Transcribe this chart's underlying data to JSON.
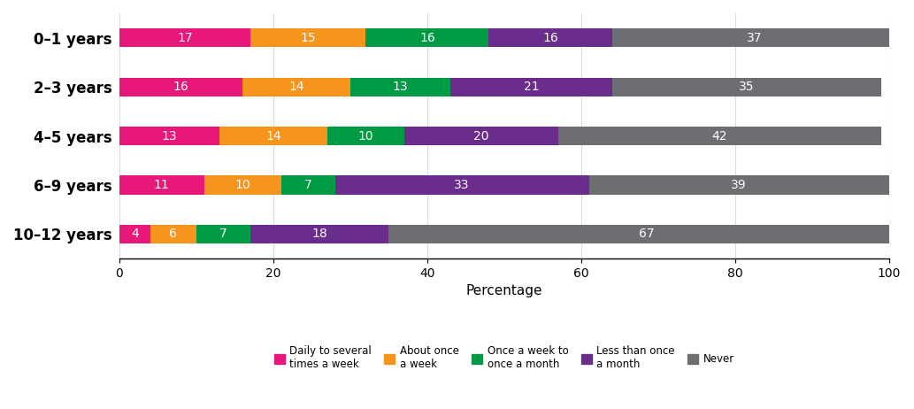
{
  "categories": [
    "0–1 years",
    "2–3 years",
    "4–5 years",
    "6–9 years",
    "10–12 years"
  ],
  "series": [
    {
      "label": "Daily to several\ntimes a week",
      "color": "#E8177A",
      "values": [
        17,
        16,
        13,
        11,
        4
      ]
    },
    {
      "label": "About once\na week",
      "color": "#F7941D",
      "values": [
        15,
        14,
        14,
        10,
        6
      ]
    },
    {
      "label": "Once a week to\nonce a month",
      "color": "#009A44",
      "values": [
        16,
        13,
        10,
        7,
        7
      ]
    },
    {
      "label": "Less than once\na month",
      "color": "#6B2D8B",
      "values": [
        16,
        21,
        20,
        33,
        18
      ]
    },
    {
      "label": "Never",
      "color": "#6D6E71",
      "values": [
        37,
        35,
        42,
        39,
        67
      ]
    }
  ],
  "xlabel": "Percentage",
  "xlim": [
    0,
    100
  ],
  "bar_height": 0.38,
  "text_color": "#FFFFFF",
  "text_fontsize": 10,
  "label_fontsize": 11,
  "tick_fontsize": 10,
  "legend_fontsize": 8.5,
  "background_color": "#FFFFFF",
  "grid_color": "#CCCCCC",
  "ytick_fontsize": 12,
  "figsize": [
    10.33,
    4.62
  ],
  "dpi": 100
}
